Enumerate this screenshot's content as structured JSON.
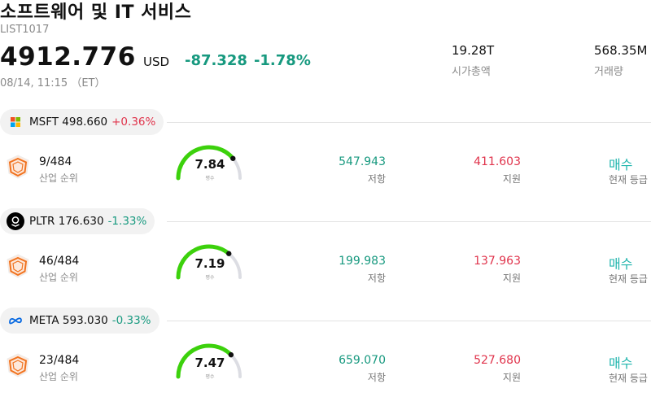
{
  "header": {
    "title": "소프트웨어 및 IT 서비스",
    "code": "LIST1017",
    "price": "4912.776",
    "currency": "USD",
    "change_abs": "-87.328",
    "change_pct": "-1.78%",
    "timestamp": "08/14, 11:15 （ET）",
    "market_cap_value": "19.28T",
    "market_cap_label": "시가총액",
    "volume_value": "568.35M",
    "volume_label": "거래량"
  },
  "stocks": [
    {
      "ticker": "MSFT",
      "price": "498.660",
      "pct": "+0.36%",
      "direction": "up",
      "logo": "microsoft-logo",
      "rank": "9/484",
      "rank_label": "산업 순위",
      "score": "7.84",
      "score_fraction": 0.78,
      "score_label": "평수",
      "resistance": "547.943",
      "resistance_label": "저항",
      "support": "411.603",
      "support_label": "지원",
      "recommendation": "매수",
      "recommendation_label": "현재 등급"
    },
    {
      "ticker": "PLTR",
      "price": "176.630",
      "pct": "-1.33%",
      "direction": "down",
      "logo": "palantir-logo",
      "rank": "46/484",
      "rank_label": "산업 순위",
      "score": "7.19",
      "score_fraction": 0.72,
      "score_label": "평수",
      "resistance": "199.983",
      "resistance_label": "저항",
      "support": "137.963",
      "support_label": "지원",
      "recommendation": "매수",
      "recommendation_label": "현재 등급"
    },
    {
      "ticker": "META",
      "price": "593.030",
      "pct": "-0.33%",
      "direction": "down",
      "logo": "meta-logo",
      "rank": "23/484",
      "rank_label": "산업 순위",
      "score": "7.47",
      "score_fraction": 0.75,
      "score_label": "평수",
      "resistance": "659.070",
      "resistance_label": "저항",
      "support": "527.680",
      "support_label": "지원",
      "recommendation": "매수",
      "recommendation_label": "현재 등급"
    }
  ],
  "colors": {
    "up": "#e0344c",
    "down": "#17997f",
    "gauge_fill": "#3cd10c",
    "gauge_track": "#dcdde3",
    "recommend": "#1fb5ad"
  }
}
